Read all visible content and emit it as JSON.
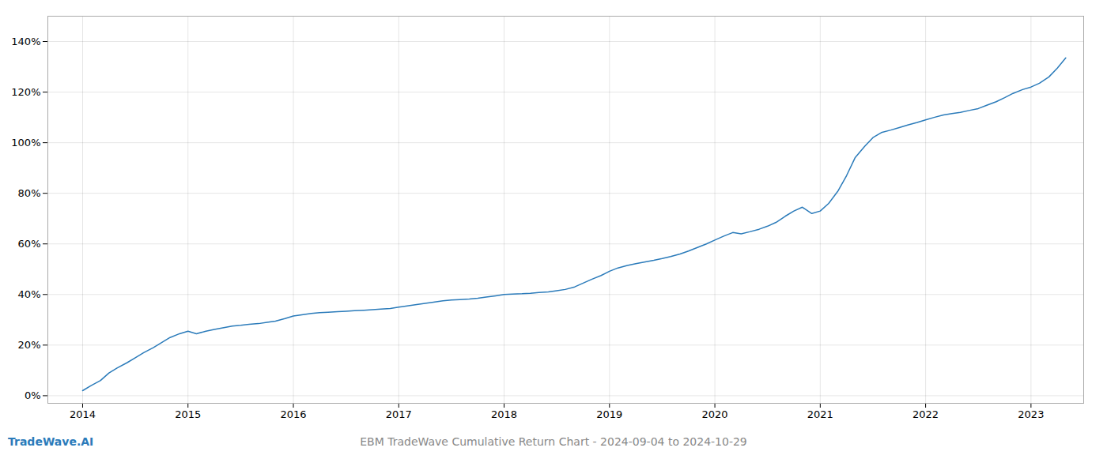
{
  "chart_data": {
    "type": "line",
    "title": "EBM TradeWave Cumulative Return Chart - 2024-09-04 to 2024-10-29",
    "annotations": [
      "TradeWave.AI"
    ],
    "color": "#2b7bba",
    "grid": true,
    "xlim": [
      2013.67,
      2023.5
    ],
    "ylim": [
      -0.03,
      1.5
    ],
    "xticks": [
      2014,
      2015,
      2016,
      2017,
      2018,
      2019,
      2020,
      2021,
      2022,
      2023
    ],
    "yticks": [
      {
        "value": 0.0,
        "label": "0%"
      },
      {
        "value": 0.2,
        "label": "20%"
      },
      {
        "value": 0.4,
        "label": "40%"
      },
      {
        "value": 0.6,
        "label": "60%"
      },
      {
        "value": 0.8,
        "label": "80%"
      },
      {
        "value": 1.0,
        "label": "100%"
      },
      {
        "value": 1.2,
        "label": "120%"
      },
      {
        "value": 1.4,
        "label": "140%"
      }
    ],
    "x": [
      2014.0,
      2014.08,
      2014.17,
      2014.25,
      2014.33,
      2014.42,
      2014.5,
      2014.58,
      2014.67,
      2014.75,
      2014.83,
      2014.92,
      2015.0,
      2015.08,
      2015.17,
      2015.25,
      2015.33,
      2015.42,
      2015.5,
      2015.58,
      2015.67,
      2015.75,
      2015.83,
      2015.92,
      2016.0,
      2016.08,
      2016.17,
      2016.25,
      2016.33,
      2016.42,
      2016.5,
      2016.58,
      2016.67,
      2016.75,
      2016.83,
      2016.92,
      2017.0,
      2017.08,
      2017.17,
      2017.25,
      2017.33,
      2017.42,
      2017.5,
      2017.58,
      2017.67,
      2017.75,
      2017.83,
      2017.92,
      2018.0,
      2018.08,
      2018.17,
      2018.25,
      2018.33,
      2018.42,
      2018.5,
      2018.58,
      2018.67,
      2018.75,
      2018.83,
      2018.92,
      2019.0,
      2019.08,
      2019.17,
      2019.25,
      2019.33,
      2019.42,
      2019.5,
      2019.58,
      2019.67,
      2019.75,
      2019.83,
      2019.92,
      2020.0,
      2020.08,
      2020.17,
      2020.25,
      2020.33,
      2020.42,
      2020.5,
      2020.58,
      2020.67,
      2020.75,
      2020.83,
      2020.92,
      2021.0,
      2021.08,
      2021.17,
      2021.25,
      2021.33,
      2021.42,
      2021.5,
      2021.58,
      2021.67,
      2021.75,
      2021.83,
      2021.92,
      2022.0,
      2022.08,
      2022.17,
      2022.25,
      2022.33,
      2022.42,
      2022.5,
      2022.58,
      2022.67,
      2022.75,
      2022.83,
      2022.92,
      2023.0,
      2023.08,
      2023.17,
      2023.25,
      2023.33
    ],
    "values": [
      0.02,
      0.04,
      0.06,
      0.09,
      0.11,
      0.13,
      0.15,
      0.17,
      0.19,
      0.21,
      0.23,
      0.245,
      0.255,
      0.245,
      0.255,
      0.262,
      0.268,
      0.275,
      0.278,
      0.282,
      0.285,
      0.29,
      0.295,
      0.305,
      0.315,
      0.32,
      0.325,
      0.328,
      0.33,
      0.332,
      0.334,
      0.336,
      0.338,
      0.34,
      0.342,
      0.345,
      0.35,
      0.355,
      0.36,
      0.365,
      0.37,
      0.375,
      0.378,
      0.38,
      0.382,
      0.385,
      0.39,
      0.395,
      0.4,
      0.402,
      0.403,
      0.405,
      0.408,
      0.41,
      0.415,
      0.42,
      0.43,
      0.445,
      0.46,
      0.475,
      0.492,
      0.505,
      0.515,
      0.522,
      0.528,
      0.535,
      0.542,
      0.55,
      0.56,
      0.572,
      0.585,
      0.6,
      0.615,
      0.63,
      0.645,
      0.64,
      0.648,
      0.658,
      0.67,
      0.685,
      0.71,
      0.73,
      0.745,
      0.72,
      0.73,
      0.76,
      0.81,
      0.87,
      0.94,
      0.985,
      1.02,
      1.04,
      1.05,
      1.06,
      1.07,
      1.08,
      1.09,
      1.1,
      1.11,
      1.115,
      1.12,
      1.128,
      1.135,
      1.148,
      1.162,
      1.178,
      1.195,
      1.21,
      1.22,
      1.235,
      1.26,
      1.295,
      1.335
    ]
  }
}
